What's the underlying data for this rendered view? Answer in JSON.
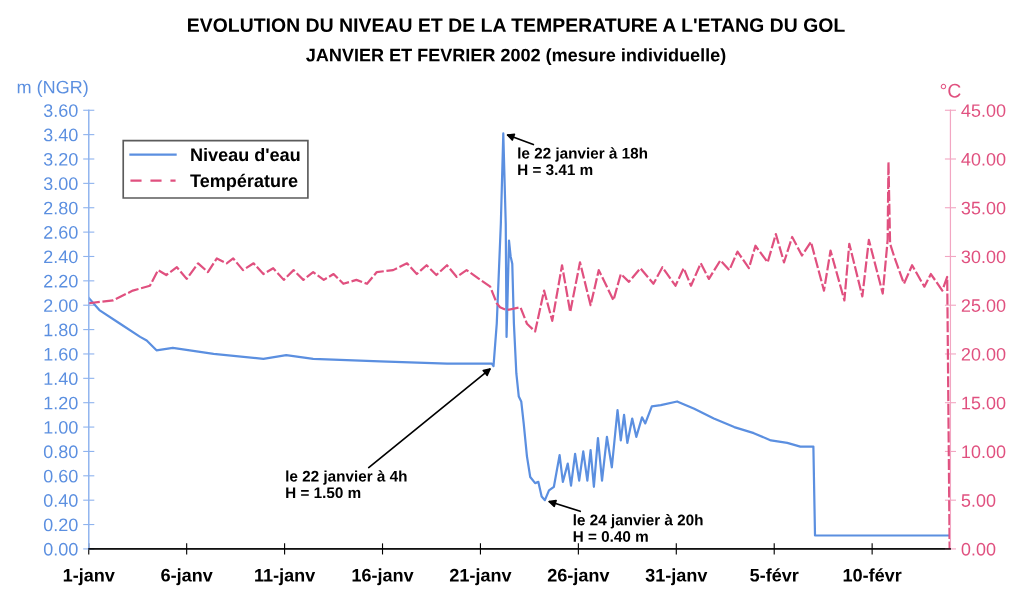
{
  "chart_data": {
    "type": "line",
    "title": "EVOLUTION DU NIVEAU ET DE LA TEMPERATURE A L'ETANG DU GOL",
    "subtitle": "JANVIER ET FEVRIER 2002 (mesure individuelle)",
    "ylabel": "m (NGR)",
    "y2label": "°C",
    "xlim": [
      "2002-01-01T00:00",
      "2002-02-14T00:00"
    ],
    "xticks": [
      {
        "value": "2002-01-01",
        "label": "1-janv"
      },
      {
        "value": "2002-01-06",
        "label": "6-janv"
      },
      {
        "value": "2002-01-11",
        "label": "11-janv"
      },
      {
        "value": "2002-01-16",
        "label": "16-janv"
      },
      {
        "value": "2002-01-21",
        "label": "21-janv"
      },
      {
        "value": "2002-01-26",
        "label": "26-janv"
      },
      {
        "value": "2002-01-31",
        "label": "31-janv"
      },
      {
        "value": "2002-02-05",
        "label": "5-févr"
      },
      {
        "value": "2002-02-10",
        "label": "10-févr"
      }
    ],
    "ylim": [
      0,
      3.6
    ],
    "yticks": [
      {
        "value": 0,
        "label": "0.00"
      },
      {
        "value": 0.2,
        "label": "0.20"
      },
      {
        "value": 0.4,
        "label": "0.40"
      },
      {
        "value": 0.6,
        "label": "0.60"
      },
      {
        "value": 0.8,
        "label": "0.80"
      },
      {
        "value": 1,
        "label": "1.00"
      },
      {
        "value": 1.2,
        "label": "1.20"
      },
      {
        "value": 1.4,
        "label": "1.40"
      },
      {
        "value": 1.6,
        "label": "1.60"
      },
      {
        "value": 1.8,
        "label": "1.80"
      },
      {
        "value": 2,
        "label": "2.00"
      },
      {
        "value": 2.2,
        "label": "2.20"
      },
      {
        "value": 2.4,
        "label": "2.40"
      },
      {
        "value": 2.6,
        "label": "2.60"
      },
      {
        "value": 2.8,
        "label": "2.80"
      },
      {
        "value": 3,
        "label": "3.00"
      },
      {
        "value": 3.2,
        "label": "3.20"
      },
      {
        "value": 3.4,
        "label": "3.40"
      },
      {
        "value": 3.6,
        "label": "3.60"
      }
    ],
    "y2lim": [
      0,
      45
    ],
    "y2ticks": [
      {
        "value": 0,
        "label": "0.00"
      },
      {
        "value": 5,
        "label": "5.00"
      },
      {
        "value": 10,
        "label": "10.00"
      },
      {
        "value": 15,
        "label": "15.00"
      },
      {
        "value": 20,
        "label": "20.00"
      },
      {
        "value": 25,
        "label": "25.00"
      },
      {
        "value": 30,
        "label": "30.00"
      },
      {
        "value": 35,
        "label": "35.00"
      },
      {
        "value": 40,
        "label": "40.00"
      },
      {
        "value": 45,
        "label": "45.00"
      }
    ],
    "grid": false,
    "legend": "top left",
    "marker": "none",
    "series": [
      {
        "name": "Niveau d'eau",
        "color": "#5b8fe0",
        "line_style": "solid",
        "x": [
          "2002-01-01T00:00",
          "2002-01-01T13:00",
          "2002-01-02T14:00",
          "2002-01-03T15:00",
          "2002-01-03T23:00",
          "2002-01-04T11:00",
          "2002-01-05T07:00",
          "2002-01-07T09:00",
          "2002-01-09T22:00",
          "2002-01-11T02:00",
          "2002-01-12T11:00",
          "2002-01-15T21:00",
          "2002-01-19T07:00",
          "2002-01-21T14:00",
          "2002-01-21T16:00",
          "2002-01-21T20:00",
          "2002-01-22T01:00",
          "2002-01-22T04:00",
          "2002-01-22T07:00",
          "2002-01-22T08:00",
          "2002-01-22T11:00",
          "2002-01-22T13:00",
          "2002-01-22T15:00",
          "2002-01-22T17:00",
          "2002-01-22T20:00",
          "2002-01-22T23:00",
          "2002-01-23T02:00",
          "2002-01-23T05:00",
          "2002-01-23T09:00",
          "2002-01-23T13:00",
          "2002-01-23T19:00",
          "2002-01-23T23:00",
          "2002-01-24T03:00",
          "2002-01-24T07:00",
          "2002-01-24T12:00",
          "2002-01-24T18:00",
          "2002-01-25T01:00",
          "2002-01-25T05:00",
          "2002-01-25T11:00",
          "2002-01-25T15:00",
          "2002-01-25T20:00",
          "2002-01-26T01:00",
          "2002-01-26T06:00",
          "2002-01-26T11:00",
          "2002-01-26T15:00",
          "2002-01-26T19:00",
          "2002-01-27T00:00",
          "2002-01-27T05:00",
          "2002-01-27T11:00",
          "2002-01-27T17:00",
          "2002-01-28T00:00",
          "2002-01-28T04:00",
          "2002-01-28T08:00",
          "2002-01-28T12:00",
          "2002-01-28T18:00",
          "2002-01-28T23:00",
          "2002-01-29T06:00",
          "2002-01-29T10:00",
          "2002-01-29T18:00",
          "2002-01-30T05:00",
          "2002-01-31T01:00",
          "2002-01-31T22:00",
          "2002-02-01T22:00",
          "2002-02-02T23:00",
          "2002-02-03T23:00",
          "2002-02-04T20:00",
          "2002-02-05T16:00",
          "2002-02-06T08:00",
          "2002-02-07T00:00",
          "2002-02-07T02:00",
          "2002-02-13T22:00"
        ],
        "values": [
          2.06,
          1.96,
          1.85,
          1.74,
          1.71,
          1.63,
          1.65,
          1.6,
          1.56,
          1.59,
          1.56,
          1.54,
          1.52,
          1.52,
          1.5,
          1.85,
          2.67,
          3.41,
          2.67,
          1.74,
          2.53,
          2.4,
          2.34,
          1.85,
          1.44,
          1.25,
          1.21,
          1.03,
          0.76,
          0.59,
          0.54,
          0.55,
          0.43,
          0.4,
          0.48,
          0.51,
          0.77,
          0.55,
          0.7,
          0.52,
          0.78,
          0.56,
          0.8,
          0.56,
          0.81,
          0.51,
          0.91,
          0.56,
          0.92,
          0.67,
          1.14,
          0.89,
          1.1,
          0.87,
          1.07,
          0.92,
          1.08,
          1.03,
          1.17,
          1.18,
          1.21,
          1.15,
          1.07,
          1.0,
          0.95,
          0.89,
          0.87,
          0.84,
          0.84,
          0.11,
          0.11
        ]
      },
      {
        "name": "Température",
        "color": "#e0507f",
        "line_style": "dashed",
        "axis": "y2",
        "x": [
          "2002-01-01T00:00",
          "2002-01-02T06:00",
          "2002-01-03T06:00",
          "2002-01-04T03:00",
          "2002-01-04T13:00",
          "2002-01-04T23:00",
          "2002-01-05T12:00",
          "2002-01-06T00:00",
          "2002-01-06T14:00",
          "2002-01-07T02:00",
          "2002-01-07T13:00",
          "2002-01-08T01:00",
          "2002-01-08T09:00",
          "2002-01-08T21:00",
          "2002-01-09T10:00",
          "2002-01-09T22:00",
          "2002-01-10T10:00",
          "2002-01-10T23:00",
          "2002-01-11T11:00",
          "2002-01-11T23:00",
          "2002-01-12T11:00",
          "2002-01-13T00:00",
          "2002-01-13T12:00",
          "2002-01-14T00:00",
          "2002-01-14T16:00",
          "2002-01-15T05:00",
          "2002-01-15T17:00",
          "2002-01-16T13:00",
          "2002-01-17T06:00",
          "2002-01-17T18:00",
          "2002-01-18T06:00",
          "2002-01-18T18:00",
          "2002-01-19T07:00",
          "2002-01-19T19:00",
          "2002-01-20T07:00",
          "2002-01-21T00:00",
          "2002-01-21T12:00",
          "2002-01-21T20:00",
          "2002-01-22T00:00",
          "2002-01-22T08:00",
          "2002-01-23T01:00",
          "2002-01-23T09:00",
          "2002-01-23T19:00",
          "2002-01-24T06:00",
          "2002-01-24T16:00",
          "2002-01-25T04:00",
          "2002-01-25T14:00",
          "2002-01-26T02:00",
          "2002-01-26T15:00",
          "2002-01-27T01:00",
          "2002-01-27T19:00",
          "2002-01-28T04:00",
          "2002-01-28T14:00",
          "2002-01-29T04:00",
          "2002-01-29T20:00",
          "2002-01-30T07:00",
          "2002-01-30T23:00",
          "2002-01-31T09:00",
          "2002-01-31T18:00",
          "2002-02-01T06:00",
          "2002-02-01T16:00",
          "2002-02-02T06:00",
          "2002-02-02T17:00",
          "2002-02-03T03:00",
          "2002-02-03T17:00",
          "2002-02-04T01:00",
          "2002-02-04T16:00",
          "2002-02-05T02:00",
          "2002-02-05T12:00",
          "2002-02-05T22:00",
          "2002-02-06T10:00",
          "2002-02-06T21:00",
          "2002-02-07T13:00",
          "2002-02-07T21:00",
          "2002-02-08T14:00",
          "2002-02-08T20:00",
          "2002-02-09T12:00",
          "2002-02-09T20:00",
          "2002-02-10T13:00",
          "2002-02-10T19:00",
          "2002-02-10T20:00",
          "2002-02-10T22:00",
          "2002-02-11T03:00",
          "2002-02-11T15:00",
          "2002-02-12T01:00",
          "2002-02-12T16:00",
          "2002-02-13T00:00",
          "2002-02-13T14:00",
          "2002-02-13T20:00",
          "2002-02-13T23:00"
        ],
        "values": [
          25.2,
          25.5,
          26.5,
          27.0,
          28.6,
          28.1,
          28.9,
          27.7,
          29.3,
          28.4,
          29.8,
          29.3,
          29.8,
          28.6,
          29.3,
          28.2,
          28.8,
          27.6,
          28.6,
          27.6,
          28.4,
          27.6,
          28.2,
          27.2,
          27.6,
          27.2,
          28.4,
          28.6,
          29.3,
          28.2,
          29.1,
          28.1,
          29.1,
          27.9,
          28.6,
          27.6,
          26.9,
          25.2,
          24.8,
          24.5,
          24.8,
          23.1,
          22.3,
          26.5,
          23.4,
          29.1,
          24.3,
          29.4,
          25.0,
          28.6,
          25.5,
          28.2,
          27.4,
          28.8,
          27.2,
          28.9,
          27.0,
          28.8,
          27.0,
          29.3,
          27.7,
          29.6,
          28.6,
          30.5,
          28.8,
          31.1,
          29.4,
          32.3,
          29.4,
          32.0,
          30.1,
          31.5,
          26.5,
          30.6,
          25.5,
          31.3,
          25.9,
          31.7,
          26.2,
          31.7,
          39.7,
          31.3,
          30.0,
          27.2,
          29.1,
          26.9,
          28.2,
          26.5,
          27.9,
          0
        ]
      }
    ],
    "annotations": [
      {
        "text": "le 22 janvier à 18h\nH = 3.41 m",
        "x": "2002-01-22T04:00",
        "y": 3.41
      },
      {
        "text": "le 22 janvier à 4h\nH = 1.50 m",
        "x": "2002-01-21T16:00",
        "y": 1.5
      },
      {
        "text": "le 24 janvier à 20h\nH = 0.40 m",
        "x": "2002-01-24T07:00",
        "y": 0.4
      }
    ]
  }
}
